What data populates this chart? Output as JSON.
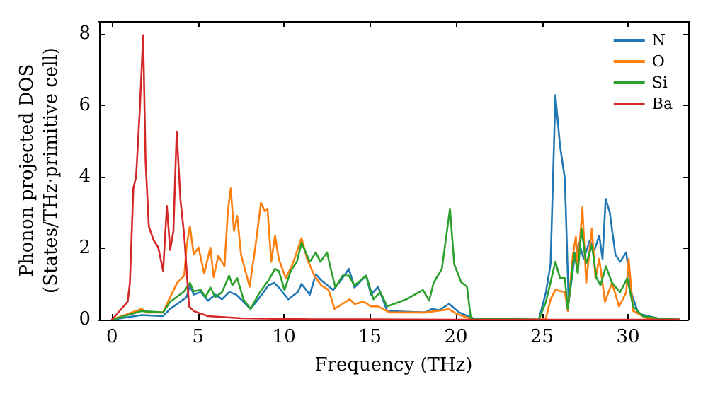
{
  "chart_data": {
    "type": "line",
    "xlabel": "Frequency (THz)",
    "ylabel": "Phonon projected DOS\n(States/THz·primitive cell)",
    "xlim": [
      -0.75,
      33.5
    ],
    "ylim": [
      0,
      8.35
    ],
    "xticks": [
      0,
      5,
      10,
      15,
      20,
      25,
      30
    ],
    "yticks": [
      0,
      2,
      4,
      6,
      8
    ],
    "grid": false,
    "legend": "top right",
    "marker": "none",
    "line_style": "solid",
    "series": [
      {
        "name": "N",
        "color": "#1f77b4",
        "x": [
          0,
          1.73,
          2.97,
          3.38,
          4.34,
          4.53,
          4.75,
          5.16,
          5.58,
          6.0,
          6.4,
          6.81,
          7.22,
          7.5,
          8.05,
          8.6,
          9.1,
          9.43,
          9.7,
          10.25,
          10.8,
          11.02,
          11.5,
          11.85,
          12.17,
          12.86,
          13.4,
          13.77,
          14.1,
          14.78,
          15.06,
          15.47,
          16.0,
          18.2,
          18.6,
          19.0,
          19.6,
          20.2,
          21.0,
          24.82,
          25.23,
          25.5,
          25.78,
          26.05,
          26.33,
          26.55,
          26.88,
          27.15,
          27.43,
          27.78,
          28.05,
          28.33,
          28.52,
          28.7,
          28.94,
          29.27,
          29.54,
          29.9,
          30.18,
          30.6,
          31.7,
          33.0
        ],
        "values": [
          0,
          0.13,
          0.1,
          0.3,
          0.63,
          0.96,
          0.7,
          0.77,
          0.53,
          0.7,
          0.57,
          0.77,
          0.7,
          0.57,
          0.3,
          0.63,
          0.96,
          1.03,
          0.9,
          0.57,
          0.77,
          1.0,
          0.7,
          1.27,
          1.1,
          0.83,
          1.16,
          1.42,
          0.9,
          1.23,
          0.7,
          0.92,
          0.24,
          0.2,
          0.3,
          0.26,
          0.44,
          0.2,
          0.04,
          0,
          0.77,
          1.56,
          6.28,
          4.86,
          3.94,
          0.48,
          1.7,
          2.15,
          1.7,
          2.22,
          1.95,
          2.35,
          1.7,
          3.38,
          3.0,
          1.82,
          1.62,
          1.88,
          0.77,
          0.17,
          0.04,
          0
        ]
      },
      {
        "name": "O",
        "color": "#ff7f0e",
        "x": [
          0,
          1.73,
          2.0,
          2.97,
          3.38,
          3.79,
          4.2,
          4.34,
          4.53,
          4.75,
          5.03,
          5.36,
          5.72,
          5.91,
          6.18,
          6.54,
          6.73,
          6.9,
          7.09,
          7.28,
          7.5,
          8.0,
          8.33,
          8.66,
          8.88,
          9.04,
          9.26,
          9.48,
          9.7,
          10.1,
          10.5,
          11.02,
          11.35,
          11.76,
          12.17,
          12.59,
          12.94,
          13.4,
          13.82,
          14.1,
          14.65,
          15.06,
          15.47,
          16.16,
          18.2,
          18.8,
          19.6,
          20.0,
          20.83,
          24.9,
          25.23,
          25.5,
          25.78,
          26.33,
          26.5,
          26.8,
          26.97,
          27.08,
          27.35,
          27.57,
          27.9,
          28.11,
          28.33,
          28.66,
          29.07,
          29.48,
          29.9,
          30.04,
          30.3,
          31.1,
          33.0
        ],
        "values": [
          0,
          0.3,
          0.2,
          0.2,
          0.63,
          1.03,
          1.23,
          2.08,
          2.61,
          1.82,
          2.02,
          1.29,
          2.02,
          1.19,
          1.79,
          1.49,
          3.0,
          3.67,
          2.48,
          2.9,
          1.82,
          0.92,
          2.02,
          3.27,
          3.03,
          3.11,
          1.62,
          2.35,
          1.69,
          1.16,
          1.55,
          2.28,
          1.69,
          1.23,
          0.96,
          0.83,
          0.3,
          0.44,
          0.57,
          0.44,
          0.5,
          0.37,
          0.37,
          0.2,
          0.2,
          0.24,
          0.29,
          0.17,
          0.03,
          0,
          0.04,
          0.57,
          0.83,
          0.77,
          0.24,
          1.82,
          2.32,
          1.42,
          3.14,
          1.03,
          2.55,
          1.16,
          1.7,
          0.5,
          1.03,
          0.37,
          0.77,
          1.7,
          0.24,
          0.04,
          0
        ]
      },
      {
        "name": "Si",
        "color": "#2ca02c",
        "x": [
          0,
          1.73,
          2.97,
          3.38,
          4.2,
          4.53,
          4.75,
          5.16,
          5.44,
          5.72,
          6.0,
          6.4,
          6.81,
          7.0,
          7.28,
          7.64,
          8.05,
          8.6,
          9.1,
          9.48,
          9.7,
          10.03,
          10.39,
          10.75,
          11.02,
          11.5,
          11.85,
          12.12,
          12.5,
          12.72,
          12.99,
          13.4,
          13.77,
          14.1,
          14.78,
          15.2,
          15.6,
          16.0,
          17.12,
          18.08,
          18.44,
          18.7,
          19.18,
          19.65,
          19.9,
          20.3,
          20.64,
          20.86,
          24.82,
          25.23,
          25.78,
          26.05,
          26.33,
          26.5,
          26.88,
          27.08,
          27.3,
          27.57,
          27.9,
          28.17,
          28.4,
          28.72,
          29.07,
          29.54,
          29.96,
          30.3,
          30.86,
          31.7,
          33.0
        ],
        "values": [
          0,
          0.24,
          0.2,
          0.5,
          0.79,
          1.03,
          0.79,
          0.83,
          0.63,
          0.9,
          0.63,
          0.77,
          1.23,
          0.96,
          1.16,
          0.57,
          0.3,
          0.77,
          1.1,
          1.42,
          1.36,
          0.83,
          1.36,
          1.62,
          2.15,
          1.62,
          1.88,
          1.62,
          1.88,
          1.42,
          0.9,
          1.23,
          1.23,
          0.96,
          1.23,
          0.57,
          0.77,
          0.37,
          0.57,
          0.83,
          0.53,
          1.03,
          1.42,
          3.1,
          1.55,
          1.05,
          0.92,
          0.04,
          0,
          0.5,
          1.62,
          1.16,
          1.16,
          0.3,
          1.88,
          1.29,
          2.55,
          1.56,
          2.08,
          1.16,
          0.96,
          1.49,
          1.03,
          0.77,
          1.16,
          0.37,
          0.1,
          0.04,
          0
        ]
      },
      {
        "name": "Ba",
        "color": "#d62728",
        "x": [
          0,
          0.91,
          1.04,
          1.24,
          1.4,
          1.62,
          1.81,
          1.95,
          2.14,
          2.42,
          2.69,
          2.97,
          3.19,
          3.38,
          3.57,
          3.76,
          3.98,
          4.2,
          4.48,
          4.75,
          5.58,
          7.5,
          11.6,
          20.0,
          33.0
        ],
        "values": [
          0,
          0.5,
          1.03,
          3.67,
          4.0,
          5.91,
          7.96,
          4.46,
          2.61,
          2.22,
          2.02,
          1.36,
          3.18,
          1.95,
          2.48,
          5.26,
          3.34,
          2.35,
          0.37,
          0.24,
          0.1,
          0.04,
          0.01,
          0,
          0
        ]
      }
    ]
  }
}
